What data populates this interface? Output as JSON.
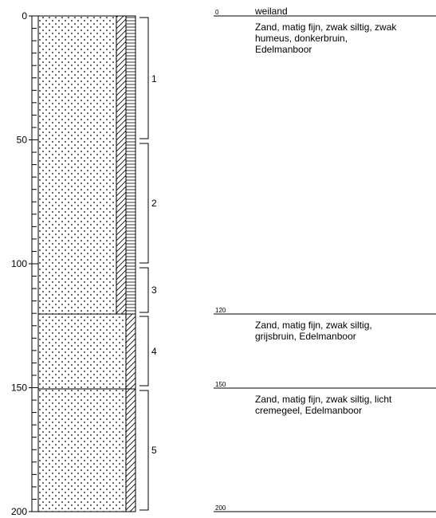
{
  "depth_axis": {
    "ticks": [
      "0",
      "50",
      "100",
      "150",
      "200"
    ]
  },
  "samples": [
    {
      "label": "1"
    },
    {
      "label": "2"
    },
    {
      "label": "3"
    },
    {
      "label": "4"
    },
    {
      "label": "5"
    }
  ],
  "surface": {
    "label": "weiland"
  },
  "layers": [
    {
      "top": "0",
      "lines": [
        "Zand, matig fijn, zwak siltig, zwak",
        "humeus, donkerbruin,",
        "Edelmanboor"
      ]
    },
    {
      "top": "120",
      "lines": [
        "Zand, matig fijn, zwak siltig,",
        "grijsbruin, Edelmanboor"
      ]
    },
    {
      "top": "150",
      "lines": [
        "Zand, matig fijn, zwak siltig, licht",
        "cremegeel, Edelmanboor"
      ]
    }
  ],
  "bottom": {
    "label": "200"
  }
}
